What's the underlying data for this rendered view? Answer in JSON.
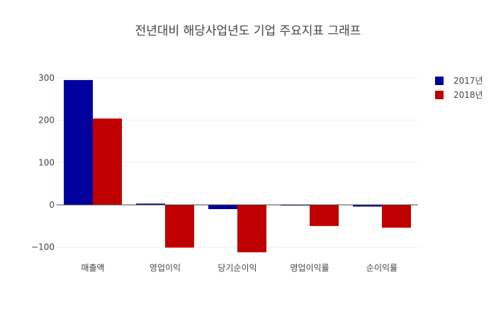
{
  "chart_data": {
    "type": "bar",
    "title": "전년대비 해당사업년도 기업 주요지표 그래프",
    "xlabel": "",
    "ylabel": "",
    "categories": [
      "매출액",
      "영업이익",
      "당기순이익",
      "영업이익률",
      "순이익률"
    ],
    "series": [
      {
        "name": "2017년",
        "color": "#00009c",
        "values": [
          295,
          3,
          -10,
          -1,
          -4
        ]
      },
      {
        "name": "2018년",
        "color": "#c00000",
        "values": [
          204,
          -101,
          -112,
          -50,
          -54
        ]
      }
    ],
    "ylim": [
      -112,
      300
    ],
    "yticks": [
      -100,
      0,
      100,
      200,
      300
    ],
    "ytick_labels": [
      "−100",
      "0",
      "100",
      "200",
      "300"
    ],
    "grid": true,
    "legend_position": "top-right"
  }
}
